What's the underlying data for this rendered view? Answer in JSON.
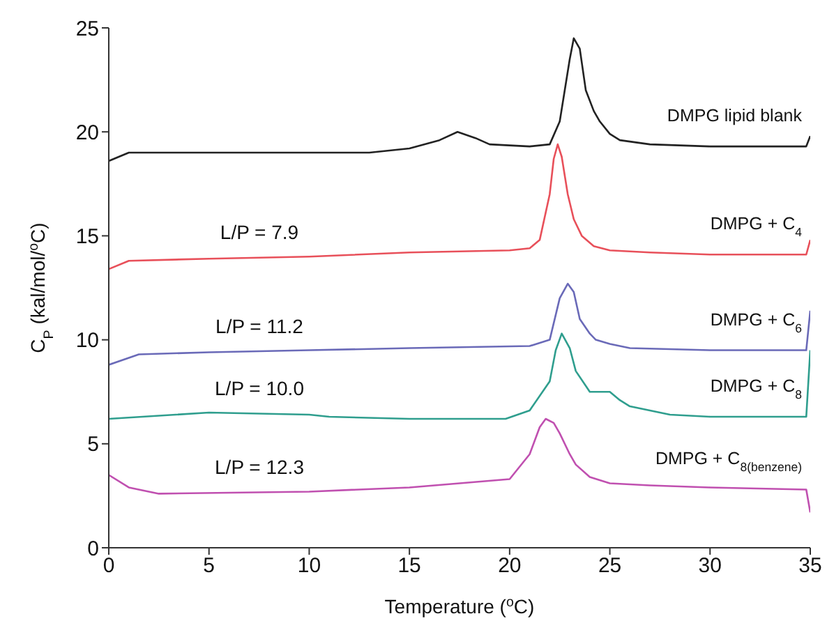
{
  "chart_data": {
    "type": "line",
    "xlabel": "Temperature ($^{o}$C)",
    "ylabel": "C$_{P}$ (kal/mol/$^{o}$C)",
    "xlim": [
      0,
      35
    ],
    "xticks": [
      0,
      5,
      10,
      15,
      20,
      25,
      30,
      35
    ],
    "ylim": [
      0,
      25
    ],
    "yticks": [
      0,
      5,
      10,
      15,
      20,
      25
    ],
    "grid": false,
    "legend": false,
    "marker": "none",
    "line_style": "solid",
    "annotations": [
      "L/P = 7.9",
      "L/P = 11.2",
      "L/P = 10.0",
      "L/P = 12.3"
    ],
    "series": [
      {
        "name": "DMPG lipid blank",
        "color": "#222222",
        "x": [
          0,
          1,
          5,
          10,
          13,
          15,
          16.5,
          17.4,
          18.3,
          19,
          21,
          22,
          22.5,
          23,
          23.2,
          23.5,
          23.8,
          24.2,
          24.5,
          25,
          25.5,
          27,
          30,
          34.8,
          35
        ],
        "values": [
          18.6,
          19.0,
          19.0,
          19.0,
          19.0,
          19.2,
          19.6,
          20.0,
          19.7,
          19.4,
          19.3,
          19.4,
          20.5,
          23.5,
          24.5,
          24.0,
          22.0,
          21.0,
          20.5,
          19.9,
          19.6,
          19.4,
          19.3,
          19.3,
          19.8
        ]
      },
      {
        "name": "DMPG + C$_{4}$",
        "color": "#e8505a",
        "x": [
          0,
          1,
          5,
          10,
          15,
          20,
          21,
          21.5,
          22,
          22.2,
          22.4,
          22.6,
          22.9,
          23.2,
          23.6,
          24.2,
          25,
          27,
          30,
          34.8,
          35
        ],
        "values": [
          13.4,
          13.8,
          13.9,
          14.0,
          14.2,
          14.3,
          14.4,
          14.8,
          17.0,
          18.7,
          19.4,
          18.8,
          17.0,
          15.8,
          15.0,
          14.5,
          14.3,
          14.2,
          14.1,
          14.1,
          14.8
        ]
      },
      {
        "name": "DMPG + C$_{6}$",
        "color": "#6a6ab8",
        "x": [
          0,
          1.5,
          5,
          10,
          15,
          21,
          22,
          22.5,
          22.9,
          23.2,
          23.5,
          24,
          24.3,
          25,
          26,
          30,
          34.8,
          35
        ],
        "values": [
          8.8,
          9.3,
          9.4,
          9.5,
          9.6,
          9.7,
          10.0,
          12.0,
          12.7,
          12.3,
          11.0,
          10.3,
          10.0,
          9.8,
          9.6,
          9.5,
          9.5,
          11.4
        ]
      },
      {
        "name": "DMPG + C$_{8}$",
        "color": "#2f9e8e",
        "x": [
          0,
          5,
          10,
          11,
          15,
          19.8,
          21,
          22,
          22.3,
          22.6,
          23,
          23.3,
          24,
          25,
          25.5,
          26,
          28,
          30,
          34.8,
          35
        ],
        "values": [
          6.2,
          6.5,
          6.4,
          6.3,
          6.2,
          6.2,
          6.6,
          8.0,
          9.5,
          10.3,
          9.6,
          8.5,
          7.5,
          7.5,
          7.1,
          6.8,
          6.4,
          6.3,
          6.3,
          9.5
        ]
      },
      {
        "name": "DMPG + C$_{8(benzene)}$",
        "color": "#c050b0",
        "x": [
          0,
          1,
          2.5,
          10,
          15,
          20,
          21,
          21.5,
          21.8,
          22.2,
          22.5,
          23,
          23.3,
          24,
          25,
          27,
          30,
          34.8,
          35
        ],
        "values": [
          3.5,
          2.9,
          2.6,
          2.7,
          2.9,
          3.3,
          4.5,
          5.8,
          6.2,
          6.0,
          5.5,
          4.5,
          4.0,
          3.4,
          3.1,
          3.0,
          2.9,
          2.8,
          1.7
        ]
      }
    ]
  }
}
